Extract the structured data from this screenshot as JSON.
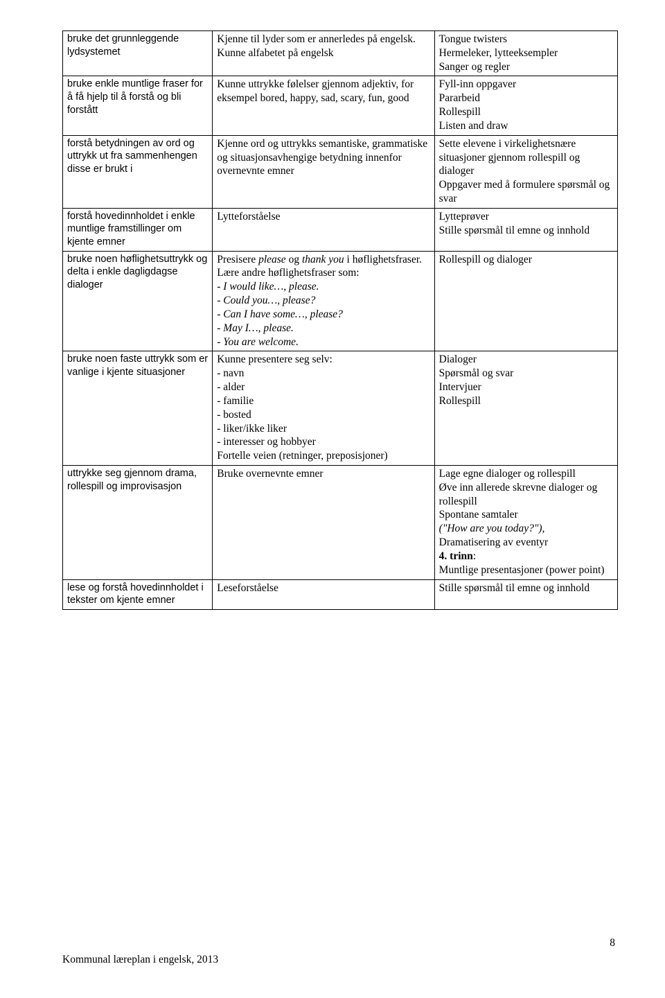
{
  "rows": [
    {
      "c1": "bruke det grunnleggende lydsystemet",
      "c2": "Kjenne til lyder som er annerledes på engelsk.\nKunne alfabetet på engelsk",
      "c3": "Tongue twisters\nHermeleker, lytteeksempler\nSanger og regler"
    },
    {
      "c1": "bruke enkle muntlige fraser for å få hjelp til å forstå og bli forstått",
      "c2": "Kunne uttrykke følelser gjennom adjektiv, for eksempel bored, happy, sad, scary, fun, good",
      "c3": "Fyll-inn oppgaver\nPararbeid\nRollespill\nListen and draw"
    },
    {
      "c1": "forstå betydningen av ord og uttrykk ut fra sammenhengen disse er brukt i",
      "c2": "Kjenne ord og uttrykks semantiske, grammatiske og situasjonsavhengige betydning innenfor overnevnte emner",
      "c3": "Sette elevene i virkelighetsnære situasjoner gjennom rollespill og dialoger\nOppgaver med å formulere spørsmål og svar"
    },
    {
      "c1": "forstå hovedinnholdet i enkle muntlige framstillinger om kjente emner",
      "c2": "Lytteforståelse",
      "c3": "Lytteprøver\nStille spørsmål til emne og innhold"
    },
    {
      "c1": "bruke noen høflighetsuttrykk og delta i enkle dagligdagse dialoger",
      "c3": "Rollespill og dialoger"
    },
    {
      "c1": "bruke noen faste uttrykk som er vanlige i kjente situasjoner",
      "c2": "Kunne presentere seg selv:\n- navn\n- alder\n- familie\n- bosted\n- liker/ikke liker\n- interesser og hobbyer\nFortelle veien (retninger, preposisjoner)",
      "c3": "Dialoger\nSpørsmål og svar\nIntervjuer\nRollespill"
    },
    {
      "c1": "uttrykke seg gjennom drama, rollespill og improvisasjon",
      "c2": "Bruke overnevnte emner"
    },
    {
      "c1": "lese og forstå hovedinnholdet i tekster om kjente emner",
      "c2": "Leseforståelse",
      "c3": "Stille spørsmål til emne og innhold"
    }
  ],
  "row5_c2": {
    "line1_a": "Presisere ",
    "line1_i1": "please",
    "line1_b": " og ",
    "line1_i2": "thank you",
    "line1_c": " i høflighetsfraser.",
    "line2": "Lære andre høflighetsfraser som:",
    "l3": "- I would like…, please.",
    "l4": "- Could you…, please?",
    "l5": "- Can I have some…, please?",
    "l6": "- May I…, please.",
    "l7": "- You are welcome."
  },
  "row7_c3": {
    "a": "Lage egne dialoger og rollespill\nØve inn allerede skrevne dialoger og rollespill\nSpontane samtaler",
    "b_i": "(\"How are you today?\"),",
    "c": "Dramatisering av eventyr",
    "d_b": "4. trinn",
    "d_after": ":",
    "e": "Muntlige presentasjoner (power point)"
  },
  "footer": "Kommunal læreplan i engelsk, 2013",
  "pagenum": "8"
}
